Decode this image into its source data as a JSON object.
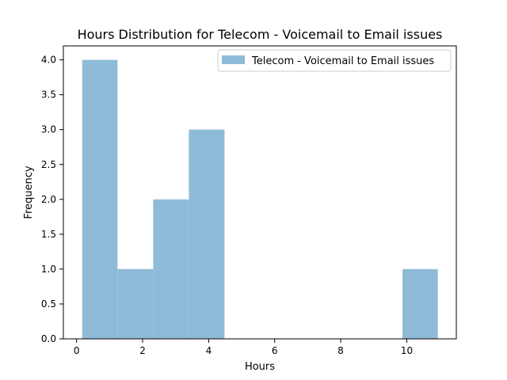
{
  "chart_data": {
    "type": "bar",
    "title": "Hours Distribution for Telecom - Voicemail to Email issues",
    "xlabel": "Hours",
    "ylabel": "Frequency",
    "xlim": [
      -0.4,
      11.5
    ],
    "ylim": [
      0,
      4.2
    ],
    "xticks": [
      0,
      2,
      4,
      6,
      8,
      10
    ],
    "yticks": [
      0.0,
      0.5,
      1.0,
      1.5,
      2.0,
      2.5,
      3.0,
      3.5,
      4.0
    ],
    "bins": [
      {
        "x0": 0.17,
        "x1": 1.24,
        "count": 4
      },
      {
        "x0": 1.24,
        "x1": 2.32,
        "count": 1
      },
      {
        "x0": 2.32,
        "x1": 3.4,
        "count": 2
      },
      {
        "x0": 3.4,
        "x1": 4.48,
        "count": 3
      },
      {
        "x0": 4.48,
        "x1": 5.55,
        "count": 0
      },
      {
        "x0": 5.55,
        "x1": 6.63,
        "count": 0
      },
      {
        "x0": 6.63,
        "x1": 7.71,
        "count": 0
      },
      {
        "x0": 7.71,
        "x1": 8.79,
        "count": 0
      },
      {
        "x0": 8.79,
        "x1": 9.87,
        "count": 0
      },
      {
        "x0": 9.87,
        "x1": 10.94,
        "count": 1
      }
    ],
    "series": [
      {
        "name": "Telecom - Voicemail to Email issues",
        "color": "#8fbbd9"
      }
    ],
    "grid": false,
    "legend": "top-right"
  }
}
